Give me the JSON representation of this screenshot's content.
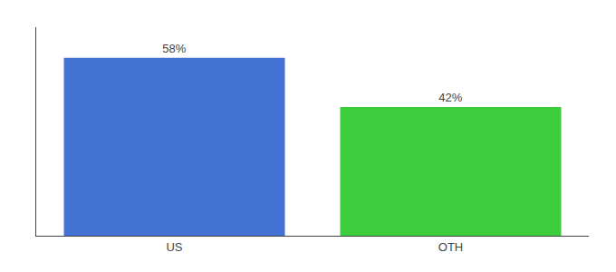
{
  "chart_data": {
    "type": "bar",
    "categories": [
      "US",
      "OTH"
    ],
    "values": [
      58,
      42
    ],
    "value_labels": [
      "58%",
      "42%"
    ],
    "colors": [
      "#4472d4",
      "#3dcc3d"
    ],
    "ylim": [
      0,
      68
    ],
    "data_labels": true,
    "tick_labels": "x",
    "grid": false
  }
}
